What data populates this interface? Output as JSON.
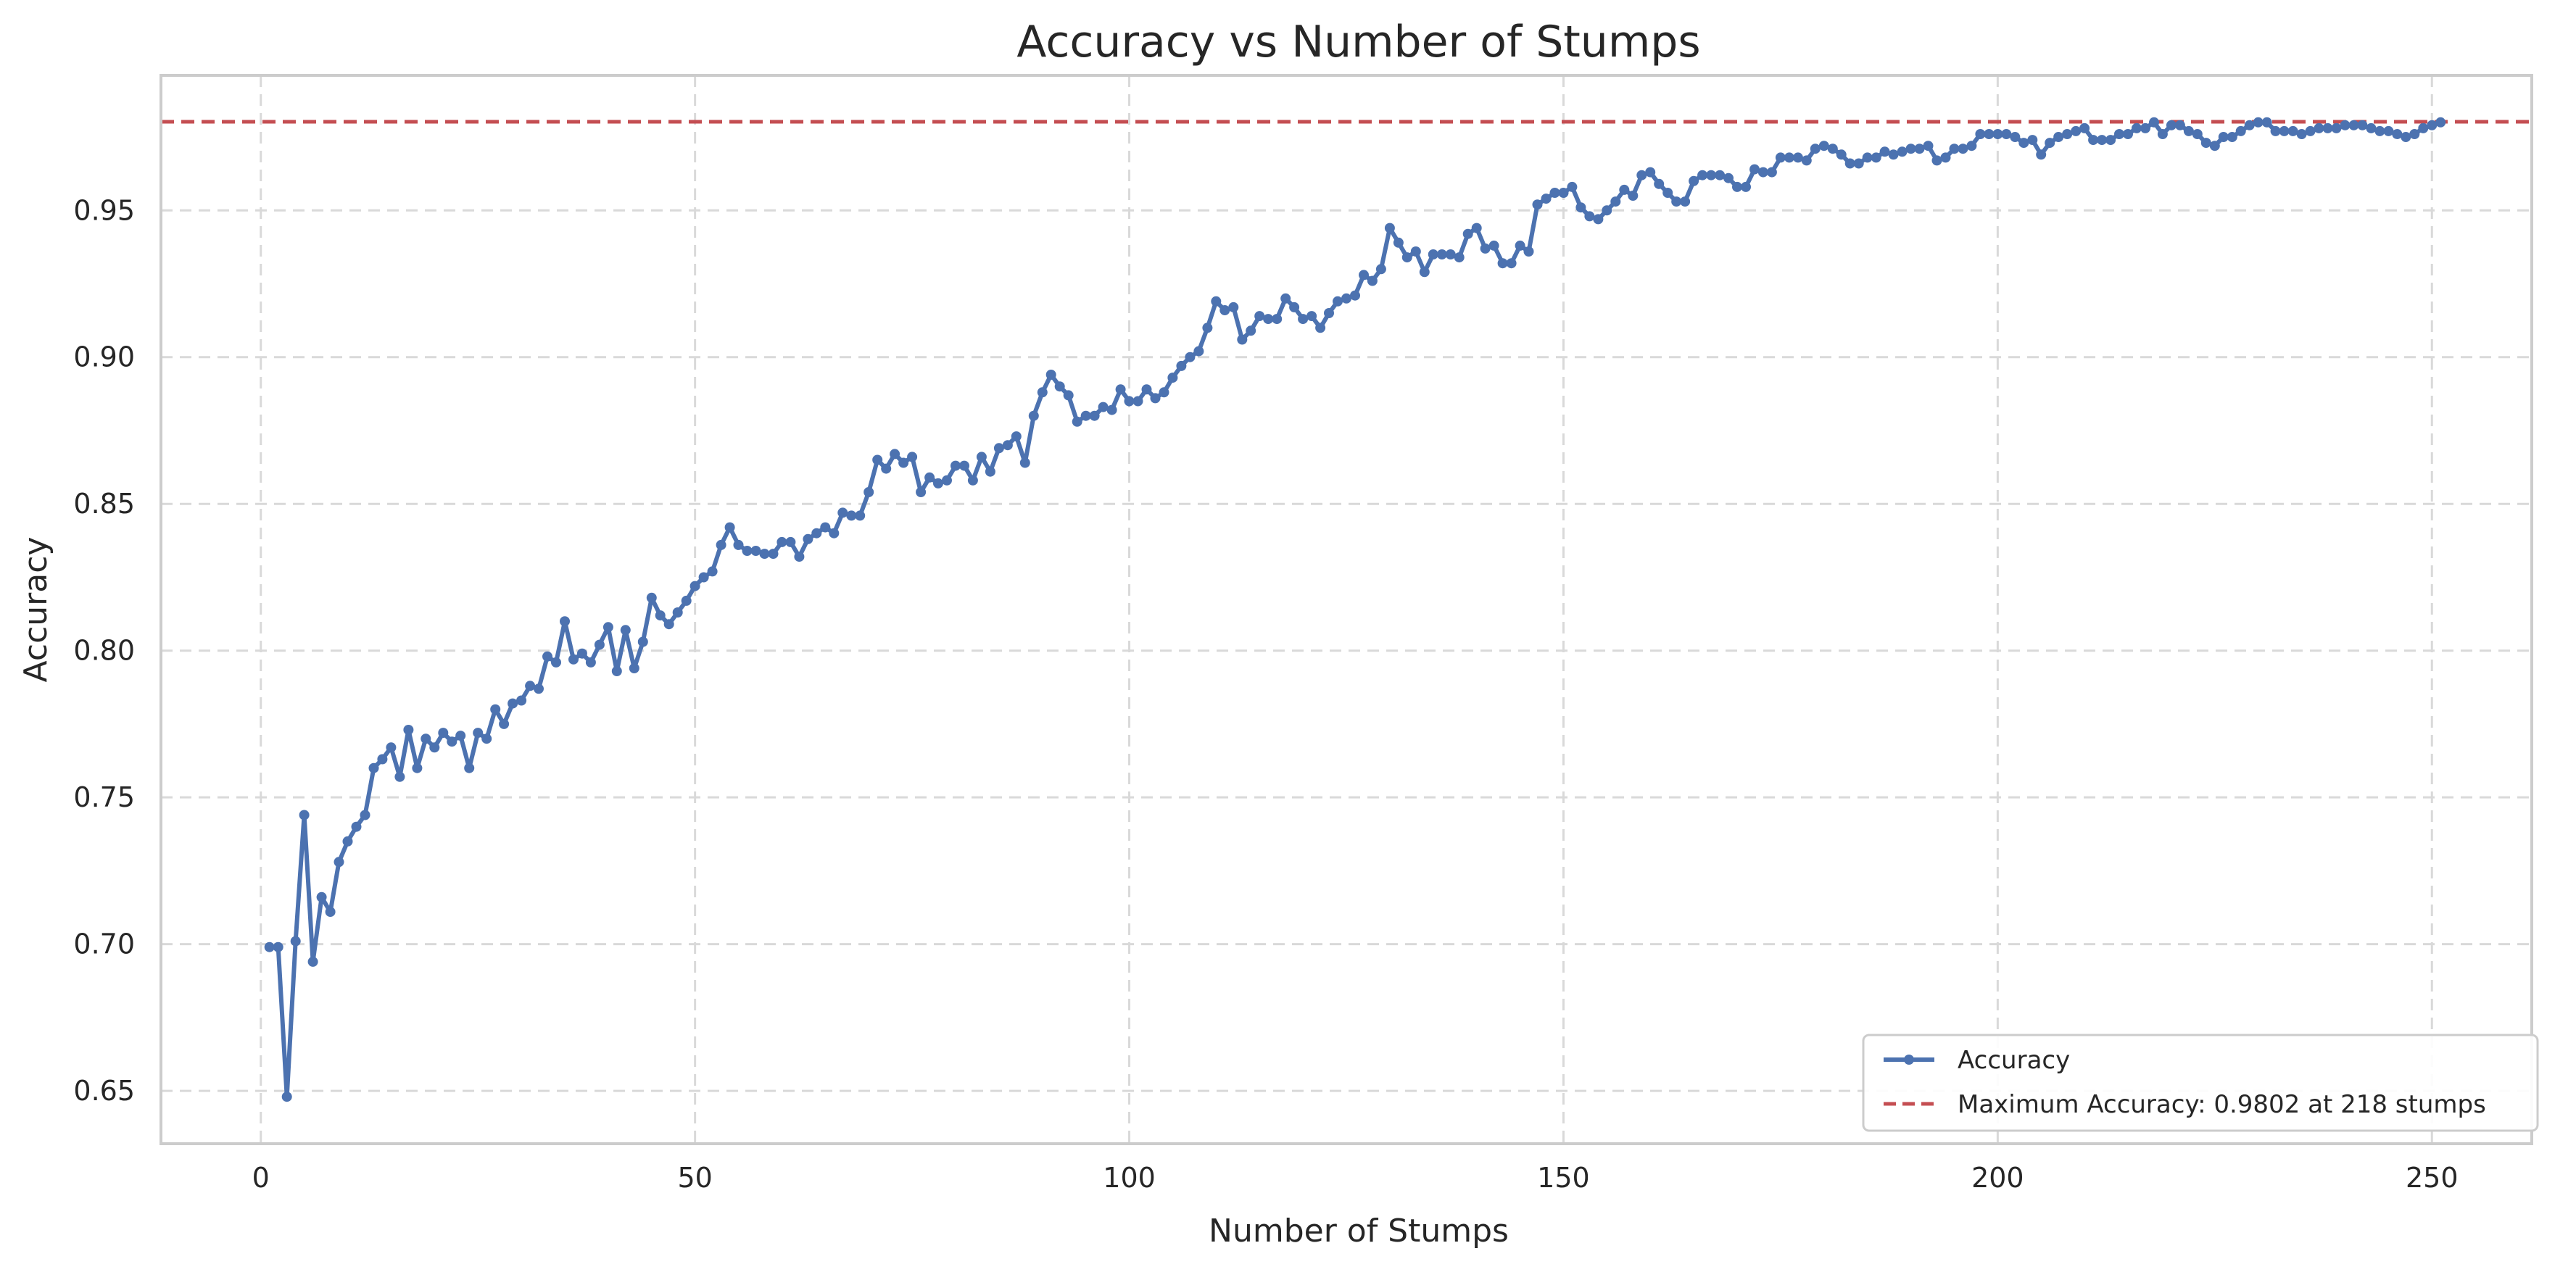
{
  "chart_data": {
    "type": "line",
    "title": "Accuracy vs Number of Stumps",
    "xlabel": "Number of Stumps",
    "ylabel": "Accuracy",
    "xlim": [
      -11.5,
      261.5
    ],
    "ylim": [
      0.632,
      0.996
    ],
    "x_ticks": [
      0,
      50,
      100,
      150,
      200,
      250
    ],
    "y_ticks": [
      0.65,
      0.7,
      0.75,
      0.8,
      0.85,
      0.9,
      0.95
    ],
    "x_tick_labels": [
      "0",
      "50",
      "100",
      "150",
      "200",
      "250"
    ],
    "y_tick_labels": [
      "0.65",
      "0.70",
      "0.75",
      "0.80",
      "0.85",
      "0.90",
      "0.95"
    ],
    "grid": true,
    "legend_position": "bottom-right",
    "colors": {
      "line": "#4c72b0",
      "reference": "#c44e52",
      "grid": "#d9d9d9",
      "frame": "#cccccc"
    },
    "reference_line": {
      "y": 0.9802,
      "label": "Maximum Accuracy: 0.9802 at 218 stumps"
    },
    "series": [
      {
        "name": "Accuracy",
        "x_start": 1,
        "values": [
          0.699,
          0.699,
          0.648,
          0.701,
          0.744,
          0.694,
          0.716,
          0.711,
          0.728,
          0.735,
          0.74,
          0.744,
          0.76,
          0.763,
          0.767,
          0.757,
          0.773,
          0.76,
          0.77,
          0.767,
          0.772,
          0.769,
          0.771,
          0.76,
          0.772,
          0.77,
          0.78,
          0.775,
          0.782,
          0.783,
          0.788,
          0.787,
          0.798,
          0.796,
          0.81,
          0.797,
          0.799,
          0.796,
          0.802,
          0.808,
          0.793,
          0.807,
          0.794,
          0.803,
          0.818,
          0.812,
          0.809,
          0.813,
          0.817,
          0.822,
          0.825,
          0.827,
          0.836,
          0.842,
          0.836,
          0.834,
          0.834,
          0.833,
          0.833,
          0.837,
          0.837,
          0.832,
          0.838,
          0.84,
          0.842,
          0.84,
          0.847,
          0.846,
          0.846,
          0.854,
          0.865,
          0.862,
          0.867,
          0.864,
          0.866,
          0.854,
          0.859,
          0.857,
          0.858,
          0.863,
          0.863,
          0.858,
          0.866,
          0.861,
          0.869,
          0.87,
          0.873,
          0.864,
          0.88,
          0.888,
          0.894,
          0.89,
          0.887,
          0.878,
          0.88,
          0.88,
          0.883,
          0.882,
          0.889,
          0.885,
          0.885,
          0.889,
          0.886,
          0.888,
          0.893,
          0.897,
          0.9,
          0.902,
          0.91,
          0.919,
          0.916,
          0.917,
          0.906,
          0.909,
          0.914,
          0.913,
          0.913,
          0.92,
          0.917,
          0.913,
          0.914,
          0.91,
          0.915,
          0.919,
          0.92,
          0.921,
          0.928,
          0.926,
          0.93,
          0.944,
          0.939,
          0.934,
          0.936,
          0.929,
          0.935,
          0.935,
          0.935,
          0.934,
          0.942,
          0.944,
          0.937,
          0.938,
          0.932,
          0.932,
          0.938,
          0.936,
          0.952,
          0.954,
          0.956,
          0.956,
          0.958,
          0.951,
          0.948,
          0.947,
          0.95,
          0.953,
          0.957,
          0.955,
          0.962,
          0.963,
          0.959,
          0.956,
          0.953,
          0.953,
          0.96,
          0.962,
          0.962,
          0.962,
          0.961,
          0.958,
          0.958,
          0.964,
          0.963,
          0.963,
          0.968,
          0.968,
          0.968,
          0.967,
          0.971,
          0.972,
          0.971,
          0.969,
          0.966,
          0.966,
          0.968,
          0.968,
          0.97,
          0.969,
          0.97,
          0.971,
          0.971,
          0.972,
          0.967,
          0.968,
          0.971,
          0.971,
          0.972,
          0.976,
          0.976,
          0.976,
          0.976,
          0.975,
          0.973,
          0.974,
          0.969,
          0.973,
          0.975,
          0.976,
          0.977,
          0.978,
          0.974,
          0.974,
          0.974,
          0.976,
          0.976,
          0.978,
          0.978,
          0.98,
          0.976,
          0.979,
          0.979,
          0.977,
          0.976,
          0.973,
          0.972,
          0.975,
          0.975,
          0.977,
          0.979,
          0.98,
          0.98,
          0.977,
          0.977,
          0.977,
          0.976,
          0.977,
          0.978,
          0.978,
          0.978,
          0.979,
          0.979,
          0.979,
          0.978,
          0.977,
          0.977,
          0.976,
          0.975,
          0.976,
          0.978,
          0.979,
          0.98
        ]
      }
    ]
  }
}
